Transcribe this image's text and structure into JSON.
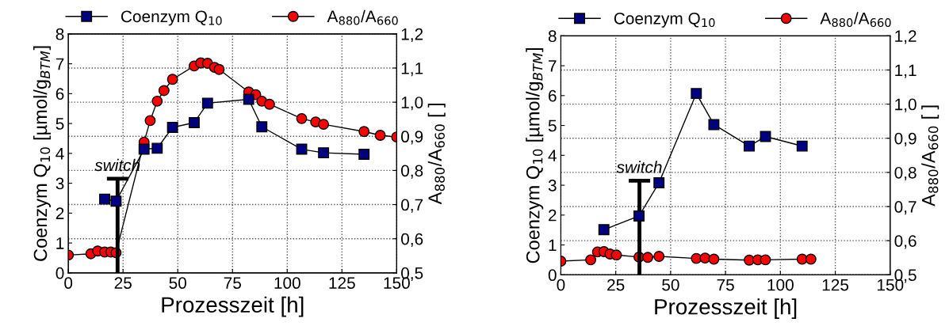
{
  "chart_data": [
    {
      "type": "line",
      "xlabel": "Prozesszeit [h]",
      "ylabel": "Coenzym Q$_{10}$ [µmol/g$_{BTM}$]",
      "y2label": "A$_{880}$/A$_{660}$ [ ]",
      "xlim": [
        0,
        150
      ],
      "xticks": [
        0,
        25,
        50,
        75,
        100,
        125,
        150
      ],
      "ylim": [
        0,
        8
      ],
      "yticks": [
        0,
        1,
        2,
        3,
        4,
        5,
        6,
        7,
        8
      ],
      "y2lim": [
        0.5,
        1.2
      ],
      "y2ticks": [
        {
          "value": 0.5,
          "label": "0,5"
        },
        {
          "value": 0.6,
          "label": "0,6"
        },
        {
          "value": 0.7,
          "label": "0,7"
        },
        {
          "value": 0.8,
          "label": "0,8"
        },
        {
          "value": 0.9,
          "label": "0,9"
        },
        {
          "value": 1.0,
          "label": "1,0"
        },
        {
          "value": 1.1,
          "label": "1,1"
        },
        {
          "value": 1.2,
          "label": "1,2"
        }
      ],
      "grid": true,
      "legend": "top",
      "ref_lines": [
        {
          "axis": "x",
          "value": 22.5,
          "label": "switch",
          "color": "#000000"
        }
      ],
      "series": [
        {
          "name": "Coenzym Q$_{10}$",
          "color": "#000080",
          "marker": "square",
          "x": [
            16.6,
            21.8,
            34.6,
            40.6,
            47.6,
            57.5,
            63.6,
            82.4,
            88.4,
            106.6,
            116.6,
            135.1
          ],
          "values": [
            2.47,
            2.4,
            4.14,
            4.17,
            4.87,
            5.03,
            5.68,
            5.81,
            4.89,
            4.14,
            4.02,
            3.97
          ]
        },
        {
          "name": "A$_{880}$/A$_{660}$",
          "color": "#ff0000",
          "marker": "circle",
          "axis": "y2",
          "x": [
            0,
            10.3,
            13.4,
            16.6,
            19.4,
            21.8,
            34.6,
            37.4,
            40.6,
            43.7,
            47.6,
            57.5,
            60.5,
            63.6,
            66.8,
            68.9,
            82.4,
            85.6,
            88.4,
            91.9,
            106.6,
            113.0,
            116.6,
            135.1,
            142.5,
            150
          ],
          "values": [
            0.552,
            0.556,
            0.564,
            0.561,
            0.561,
            0.559,
            0.883,
            0.946,
            1.003,
            1.034,
            1.067,
            1.106,
            1.115,
            1.114,
            1.102,
            1.096,
            1.03,
            1.022,
            1.003,
            0.994,
            0.952,
            0.942,
            0.935,
            0.914,
            0.903,
            0.898
          ]
        }
      ]
    },
    {
      "type": "line",
      "xlabel": "Prozesszeit [h]",
      "ylabel": "Coenzym Q$_{10}$ [µmol/g$_{BTM}$]",
      "y2label": "A$_{880}$/A$_{660}$ [ ]",
      "xlim": [
        0,
        150
      ],
      "xticks": [
        0,
        25,
        50,
        75,
        100,
        125,
        150
      ],
      "ylim": [
        0,
        8
      ],
      "yticks": [
        0,
        1,
        2,
        3,
        4,
        5,
        6,
        7,
        8
      ],
      "y2lim": [
        0.5,
        1.2
      ],
      "y2ticks": [
        {
          "value": 0.5,
          "label": "0,5"
        },
        {
          "value": 0.6,
          "label": "0,6"
        },
        {
          "value": 0.7,
          "label": "0,7"
        },
        {
          "value": 0.8,
          "label": "0,8"
        },
        {
          "value": 0.9,
          "label": "0,9"
        },
        {
          "value": 1.0,
          "label": "1,0"
        },
        {
          "value": 1.1,
          "label": "1,1"
        },
        {
          "value": 1.2,
          "label": "1,2"
        }
      ],
      "grid": true,
      "legend": "top",
      "ref_lines": [
        {
          "axis": "x",
          "value": 35.8,
          "label": "switch",
          "color": "#000000"
        }
      ],
      "series": [
        {
          "name": "Coenzym Q$_{10}$",
          "color": "#000080",
          "marker": "square",
          "x": [
            19.6,
            35.6,
            44.7,
            61.7,
            69.7,
            85.8,
            93.2,
            109.9
          ],
          "values": [
            1.51,
            1.97,
            3.08,
            6.07,
            5.03,
            4.31,
            4.63,
            4.31
          ]
        },
        {
          "name": "A$_{880}$/A$_{660}$",
          "color": "#ff0000",
          "marker": "circle",
          "axis": "y2",
          "x": [
            0,
            13.6,
            16.7,
            19.6,
            22.4,
            25.3,
            35.6,
            39.6,
            44.7,
            61.7,
            65.7,
            69.7,
            85.8,
            89.7,
            93.2,
            109.9,
            113.9
          ],
          "values": [
            0.54,
            0.544,
            0.567,
            0.568,
            0.561,
            0.558,
            0.552,
            0.551,
            0.554,
            0.548,
            0.549,
            0.546,
            0.543,
            0.544,
            0.544,
            0.546,
            0.546
          ]
        }
      ]
    }
  ]
}
